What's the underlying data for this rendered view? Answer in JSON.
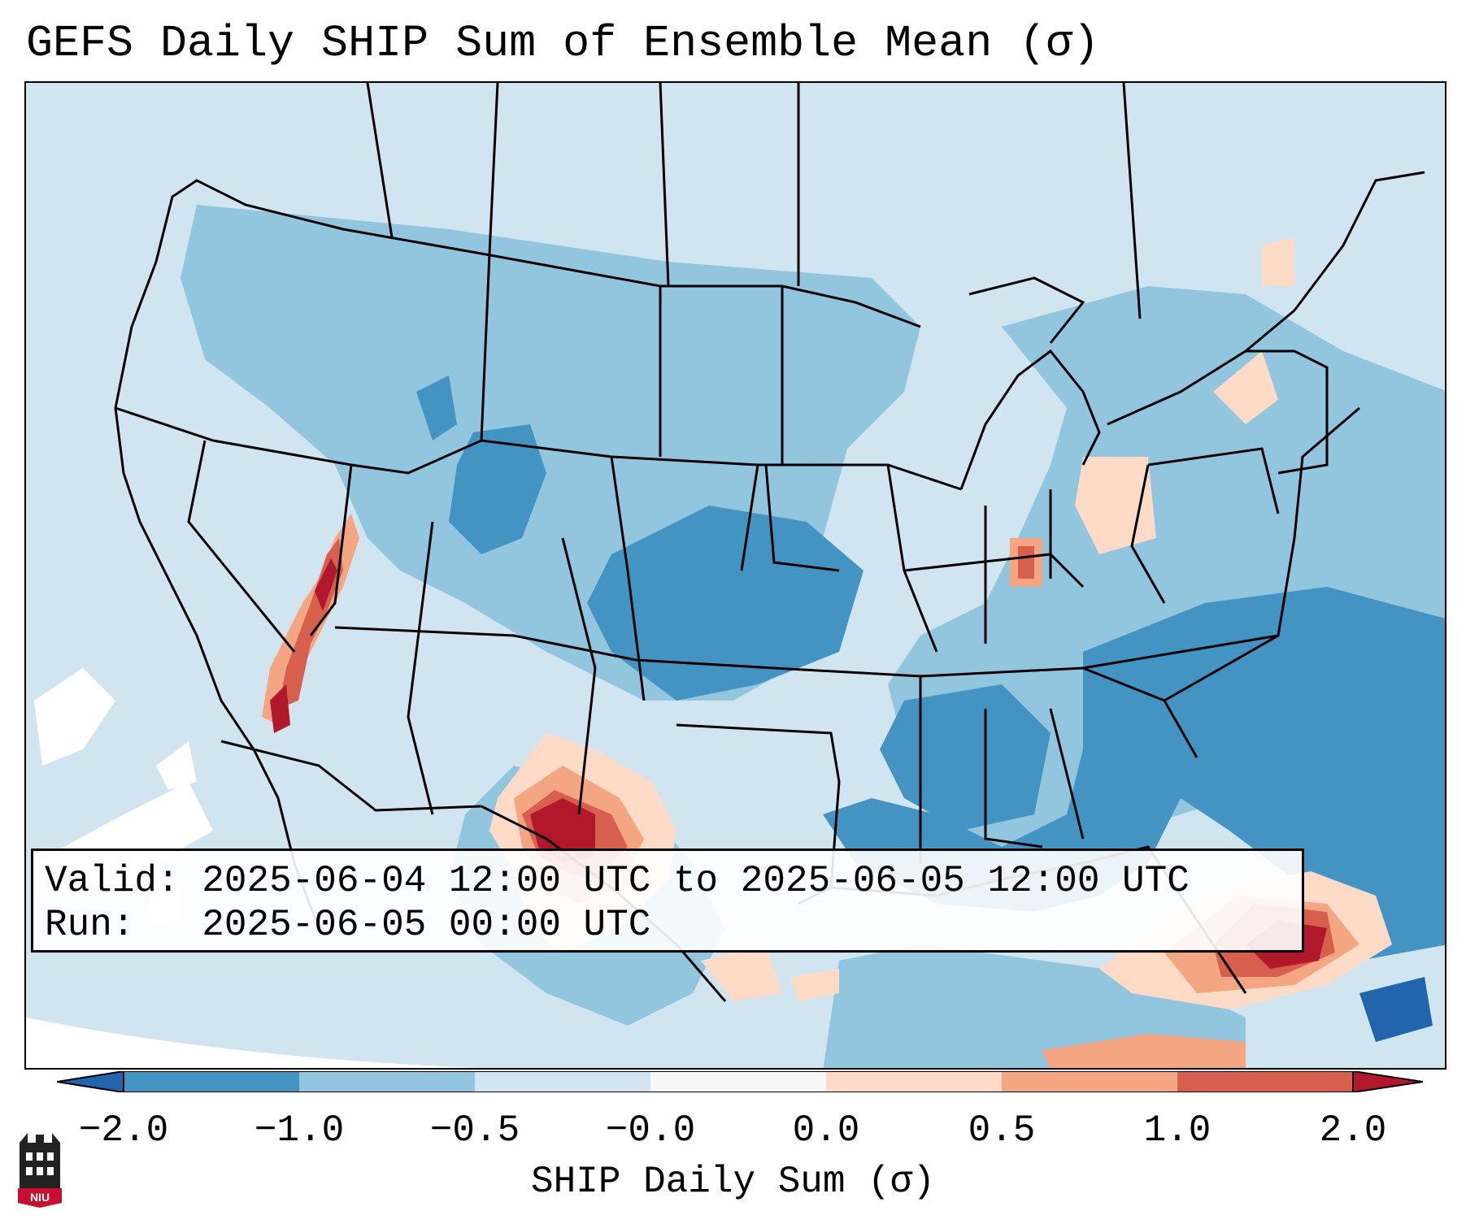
{
  "title": "GEFS Daily SHIP Sum of Ensemble Mean (σ)",
  "info": {
    "valid_label": "Valid:",
    "valid_value": "2025-06-04 12:00 UTC to 2025-06-05 12:00 UTC",
    "run_label": "Run:",
    "run_value": "2025-06-05 00:00 UTC"
  },
  "colorbar": {
    "label": "SHIP Daily Sum (σ)",
    "ticks": [
      "−2.0",
      "−1.0",
      "−0.5",
      "−0.0",
      "0.0",
      "0.5",
      "1.0",
      "2.0"
    ],
    "colors": [
      "#4393c3",
      "#92c5de",
      "#d1e5f0",
      "#f7f7f7",
      "#fddbc7",
      "#f4a582",
      "#d6604d",
      "#b2182b"
    ],
    "under_color": "#2166ac",
    "over_color": "#b2182b",
    "extend": "both"
  },
  "map": {
    "region": "Contiguous United States",
    "background_color": "#d1e5f0"
  },
  "logo": {
    "text": "NIU",
    "color": "#c8102e"
  }
}
